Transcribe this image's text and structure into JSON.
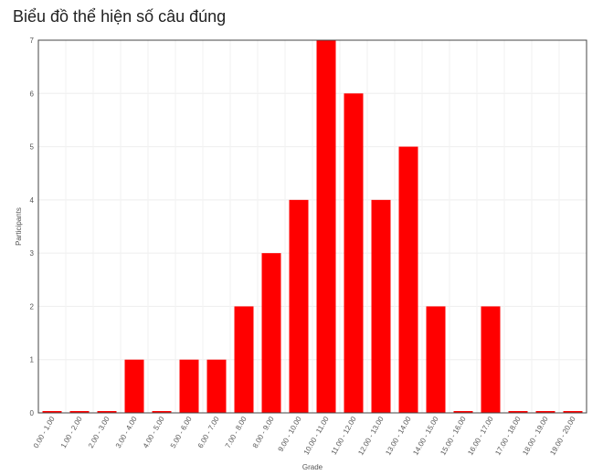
{
  "page": {
    "title": "Biểu đồ thể hiện số câu đúng"
  },
  "chart_data": {
    "type": "bar",
    "title": "",
    "xlabel": "Grade",
    "ylabel": "Participants",
    "ylim": [
      0,
      7
    ],
    "yticks": [
      0,
      1,
      2,
      3,
      4,
      5,
      6,
      7
    ],
    "grid": true,
    "legend": "none",
    "bar_color": "#ff0000",
    "categories": [
      "0.00 - 1.00",
      "1.00 - 2.00",
      "2.00 - 3.00",
      "3.00 - 4.00",
      "4.00 - 5.00",
      "5.00 - 6.00",
      "6.00 - 7.00",
      "7.00 - 8.00",
      "8.00 - 9.00",
      "9.00 - 10.00",
      "10.00 - 11.00",
      "11.00 - 12.00",
      "12.00 - 13.00",
      "13.00 - 14.00",
      "14.00 - 15.00",
      "15.00 - 16.00",
      "16.00 - 17.00",
      "17.00 - 18.00",
      "18.00 - 19.00",
      "19.00 - 20.00"
    ],
    "values": [
      0,
      0,
      0,
      1,
      0,
      1,
      1,
      2,
      3,
      4,
      7,
      6,
      4,
      5,
      2,
      0,
      2,
      0,
      0,
      0
    ]
  }
}
